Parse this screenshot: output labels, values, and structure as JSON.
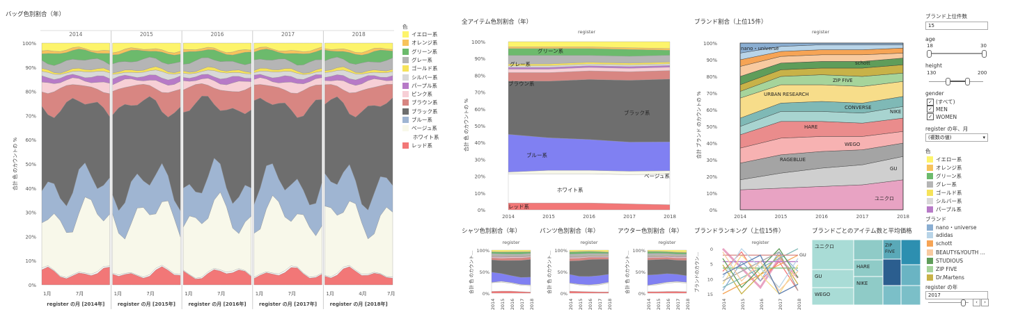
{
  "colors": {
    "yellow": "#fdf46b",
    "orange": "#f7c35c",
    "green": "#6cba6c",
    "gray": "#b5b5b5",
    "gold": "#f6e35a",
    "silver": "#d8d8d8",
    "purple": "#b77ac7",
    "pink": "#f7cfd6",
    "brown": "#d88682",
    "black": "#6e6e6e",
    "blue": "#9fb5d2",
    "beige": "#f8f8ea",
    "white": "#ffffff",
    "red": "#f27777",
    "brightblue": "#8080f2"
  },
  "dashboard": {
    "bag_title": "バッグ色別割合（年）",
    "all_title": "全アイテム色別割合（年）",
    "brand_title": "ブランド割合（上位15件）",
    "shirt_title": "シャツ色別割合（年）",
    "pants_title": "パンツ色別割合（年）",
    "outer_title": "アウター色別割合（年）",
    "ranking_title": "ブランドランキング（上位15件）",
    "treemap_title": "ブランドごとのアイテム数と平均価格",
    "register": "register"
  },
  "bag_chart": {
    "years": [
      "2014",
      "2015",
      "2016",
      "2017",
      "2018"
    ],
    "bottom_labels": [
      "register の月 [2014年]",
      "register の月 [2015年]",
      "register の月 [2016年]",
      "register の月 [2017年]",
      "register の月 [2018年]"
    ],
    "month_ticks": [
      [
        "1月",
        "7月"
      ],
      [
        "1月",
        "7月"
      ],
      [
        "1月",
        "7月"
      ],
      [
        "1月",
        "7月"
      ],
      [
        "1月",
        "4月",
        "7月"
      ]
    ],
    "y_ticks": [
      "0%",
      "10%",
      "20%",
      "30%",
      "40%",
      "50%",
      "60%",
      "70%",
      "80%",
      "90%",
      "100%"
    ],
    "ylabel": "合計 色 のカウントの %"
  },
  "color_legend": {
    "title": "色",
    "items": [
      {
        "label": "イエロー系",
        "color": "#fdf46b"
      },
      {
        "label": "オレンジ系",
        "color": "#f7c35c"
      },
      {
        "label": "グリーン系",
        "color": "#6cba6c"
      },
      {
        "label": "グレー系",
        "color": "#b5b5b5"
      },
      {
        "label": "ゴールド系",
        "color": "#f6e35a"
      },
      {
        "label": "シルバー系",
        "color": "#d8d8d8"
      },
      {
        "label": "パープル系",
        "color": "#b77ac7"
      },
      {
        "label": "ピンク系",
        "color": "#f7cfd6"
      },
      {
        "label": "ブラウン系",
        "color": "#d88682"
      },
      {
        "label": "ブラック系",
        "color": "#6e6e6e"
      },
      {
        "label": "ブルー系",
        "color": "#9fb5d2"
      },
      {
        "label": "ベージュ系",
        "color": "#f8f8ea"
      },
      {
        "label": "ホワイト系",
        "color": "#ffffff"
      },
      {
        "label": "レッド系",
        "color": "#f27777"
      }
    ]
  },
  "chart_data": [
    {
      "type": "area",
      "name": "all_items",
      "x": [
        "2014",
        "2015",
        "2016",
        "2017",
        "2018"
      ],
      "ylim": [
        0,
        100
      ],
      "y_ticks": [
        "0%",
        "10%",
        "20%",
        "30%",
        "40%",
        "50%",
        "60%",
        "70%",
        "80%",
        "90%",
        "100%"
      ],
      "ylabel": "合計 色 のカウントの %",
      "series": [
        {
          "name": "レッド系",
          "values": [
            4,
            4,
            4,
            3.5,
            3
          ]
        },
        {
          "name": "ホワイト系",
          "values": [
            17,
            17,
            17,
            17,
            18
          ]
        },
        {
          "name": "ベージュ系",
          "values": [
            1,
            2,
            2,
            2,
            2
          ]
        },
        {
          "name": "ブルー系",
          "values": [
            22,
            19,
            18,
            17,
            17
          ]
        },
        {
          "name": "ブラック系",
          "values": [
            31,
            33,
            35,
            36,
            37
          ]
        },
        {
          "name": "ブラウン系",
          "values": [
            5,
            5,
            5,
            5,
            5
          ]
        },
        {
          "name": "ピンク系",
          "values": [
            2,
            2,
            2,
            2,
            2
          ]
        },
        {
          "name": "パープル系",
          "values": [
            1,
            1,
            1,
            1,
            1
          ]
        },
        {
          "name": "シルバー系",
          "values": [
            1,
            1,
            1,
            1,
            1
          ]
        },
        {
          "name": "ゴールド系",
          "values": [
            1,
            1,
            1,
            1,
            1
          ]
        },
        {
          "name": "グレー系",
          "values": [
            5,
            5,
            4,
            4,
            4
          ]
        },
        {
          "name": "グリーン系",
          "values": [
            4,
            4,
            4,
            4,
            3
          ]
        },
        {
          "name": "オレンジ系",
          "values": [
            1,
            1,
            1,
            1,
            1
          ]
        },
        {
          "name": "イエロー系",
          "values": [
            3,
            3,
            3,
            3.5,
            4
          ]
        }
      ],
      "labels": [
        "グリーン系",
        "グレー系",
        "ブラウン系",
        "ブラック系",
        "ブルー系",
        "ベージュ系",
        "ホワイト系",
        "レッド系"
      ]
    },
    {
      "type": "area",
      "name": "brand_share",
      "x": [
        "2014",
        "2015",
        "2016",
        "2017",
        "2018"
      ],
      "ylim": [
        0,
        100
      ],
      "y_ticks": [
        "0%",
        "10%",
        "20%",
        "30%",
        "40%",
        "50%",
        "60%",
        "70%",
        "80%",
        "90%",
        "100%"
      ],
      "ylabel": "合計 ブランド のカウントの %",
      "series": [
        {
          "name": "ユニクロ",
          "values": [
            12,
            13,
            14,
            15,
            18
          ]
        },
        {
          "name": "GU",
          "values": [
            6,
            9,
            11,
            12,
            14
          ]
        },
        {
          "name": "RAGEBLUE",
          "values": [
            10,
            11,
            10,
            9,
            8
          ]
        },
        {
          "name": "WEGO",
          "values": [
            9,
            10,
            9,
            8,
            7
          ]
        },
        {
          "name": "HARE",
          "values": [
            8,
            10,
            9,
            8,
            8
          ]
        },
        {
          "name": "NIKE",
          "values": [
            5,
            6,
            6,
            6,
            7
          ]
        },
        {
          "name": "CONVERSE",
          "values": [
            5,
            5,
            6,
            6,
            6
          ]
        },
        {
          "name": "URBAN RESEARCH",
          "values": [
            12,
            11,
            10,
            10,
            9
          ]
        },
        {
          "name": "ZIP FIVE",
          "values": [
            4,
            5,
            6,
            6,
            5
          ]
        },
        {
          "name": "Dr.Martens",
          "values": [
            4,
            4,
            4,
            5,
            5
          ]
        },
        {
          "name": "STUDIOUS",
          "values": [
            5,
            4,
            4,
            4,
            4
          ]
        },
        {
          "name": "BEAUTY&YOUTH",
          "values": [
            6,
            4,
            4,
            4,
            3
          ]
        },
        {
          "name": "schott",
          "values": [
            4,
            3,
            3,
            3,
            3
          ]
        },
        {
          "name": "adidas",
          "values": [
            4,
            3,
            3,
            3,
            2
          ]
        },
        {
          "name": "nano・universe",
          "values": [
            6,
            2,
            1,
            1,
            1
          ]
        }
      ]
    }
  ],
  "brand_labels": [
    "nano・universe",
    "schott",
    "ZIP FIVE",
    "URBAN RESEARCH",
    "CONVERSE",
    "NIKE",
    "HARE",
    "WEGO",
    "RAGEBLUE",
    "GU",
    "ユニクロ"
  ],
  "small_charts": {
    "x": [
      "2014",
      "2015",
      "2016",
      "2017",
      "2018"
    ],
    "y_ticks": [
      "0%",
      "50%",
      "100%"
    ],
    "ylabel": "合計 色 のカウント...",
    "ranking_ylabel": "ブランドのカウン...",
    "ranking_ticks": [
      "0",
      "5",
      "10",
      "15"
    ],
    "ranking_end_label": "GU"
  },
  "treemap": {
    "labels": [
      "ユニクロ",
      "GU",
      "WEGO",
      "HARE",
      "NIKE",
      "ZIP FIVE"
    ]
  },
  "controls": {
    "brand_top_label": "ブランド上位件数",
    "brand_top_value": "15",
    "age_label": "age",
    "age_min": "18",
    "age_max": "30",
    "height_label": "height",
    "height_min": "130",
    "height_max": "200",
    "gender_label": "gender",
    "gender_options": [
      "(すべて)",
      "MEN",
      "WOMEN"
    ],
    "ym_label": "register の年、月",
    "ym_value": "(複数の値)",
    "brand_legend_title": "ブランド",
    "brand_legend": [
      {
        "label": "nano・universe",
        "color": "#8aaed2"
      },
      {
        "label": "adidas",
        "color": "#b8d4e8"
      },
      {
        "label": "schott",
        "color": "#f6a455"
      },
      {
        "label": "BEAUTY&YOUTH ...",
        "color": "#f8caa0"
      },
      {
        "label": "STUDIOUS",
        "color": "#5f9d5a"
      },
      {
        "label": "ZIP FIVE",
        "color": "#a6d49b"
      },
      {
        "label": "Dr.Martens",
        "color": "#c8b248"
      }
    ],
    "year_label": "register の年",
    "year_value": "2017"
  }
}
